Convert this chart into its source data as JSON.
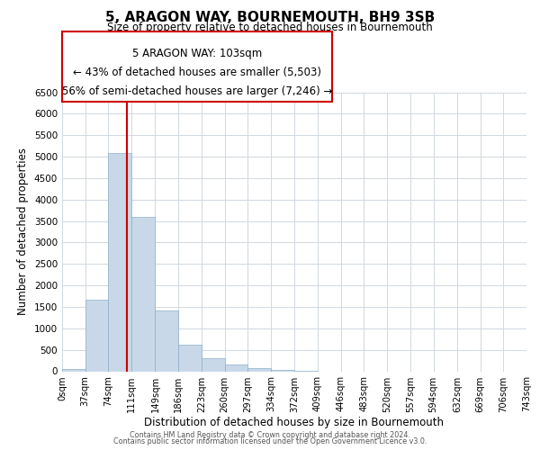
{
  "title": "5, ARAGON WAY, BOURNEMOUTH, BH9 3SB",
  "subtitle": "Size of property relative to detached houses in Bournemouth",
  "xlabel": "Distribution of detached houses by size in Bournemouth",
  "ylabel": "Number of detached properties",
  "bar_edges": [
    0,
    37,
    74,
    111,
    149,
    186,
    223,
    260,
    297,
    334,
    372,
    409,
    446,
    483,
    520,
    557,
    594,
    632,
    669,
    706,
    743
  ],
  "bar_heights": [
    60,
    1670,
    5080,
    3590,
    1420,
    610,
    300,
    155,
    75,
    30,
    5,
    0,
    0,
    0,
    0,
    0,
    0,
    0,
    0,
    0
  ],
  "bar_color": "#c8d8e8",
  "bar_edge_color": "#8ab0c8",
  "vline_x": 103,
  "vline_color": "#cc0000",
  "ylim": [
    0,
    6500
  ],
  "yticks": [
    0,
    500,
    1000,
    1500,
    2000,
    2500,
    3000,
    3500,
    4000,
    4500,
    5000,
    5500,
    6000,
    6500
  ],
  "xtick_labels": [
    "0sqm",
    "37sqm",
    "74sqm",
    "111sqm",
    "149sqm",
    "186sqm",
    "223sqm",
    "260sqm",
    "297sqm",
    "334sqm",
    "372sqm",
    "409sqm",
    "446sqm",
    "483sqm",
    "520sqm",
    "557sqm",
    "594sqm",
    "632sqm",
    "669sqm",
    "706sqm",
    "743sqm"
  ],
  "ann_line1": "5 ARAGON WAY: 103sqm",
  "ann_line2": "← 43% of detached houses are smaller (5,503)",
  "ann_line3": "56% of semi-detached houses are larger (7,246) →",
  "footer1": "Contains HM Land Registry data © Crown copyright and database right 2024.",
  "footer2": "Contains public sector information licensed under the Open Government Licence v3.0.",
  "bg_color": "#ffffff",
  "grid_color": "#d0d8e0",
  "vline_color_box": "#cc0000",
  "title_fontsize": 11,
  "subtitle_fontsize": 8.5,
  "ylabel_fontsize": 8.5,
  "xlabel_fontsize": 8.5,
  "ann_fontsize": 8.5,
  "footer_fontsize": 5.8
}
